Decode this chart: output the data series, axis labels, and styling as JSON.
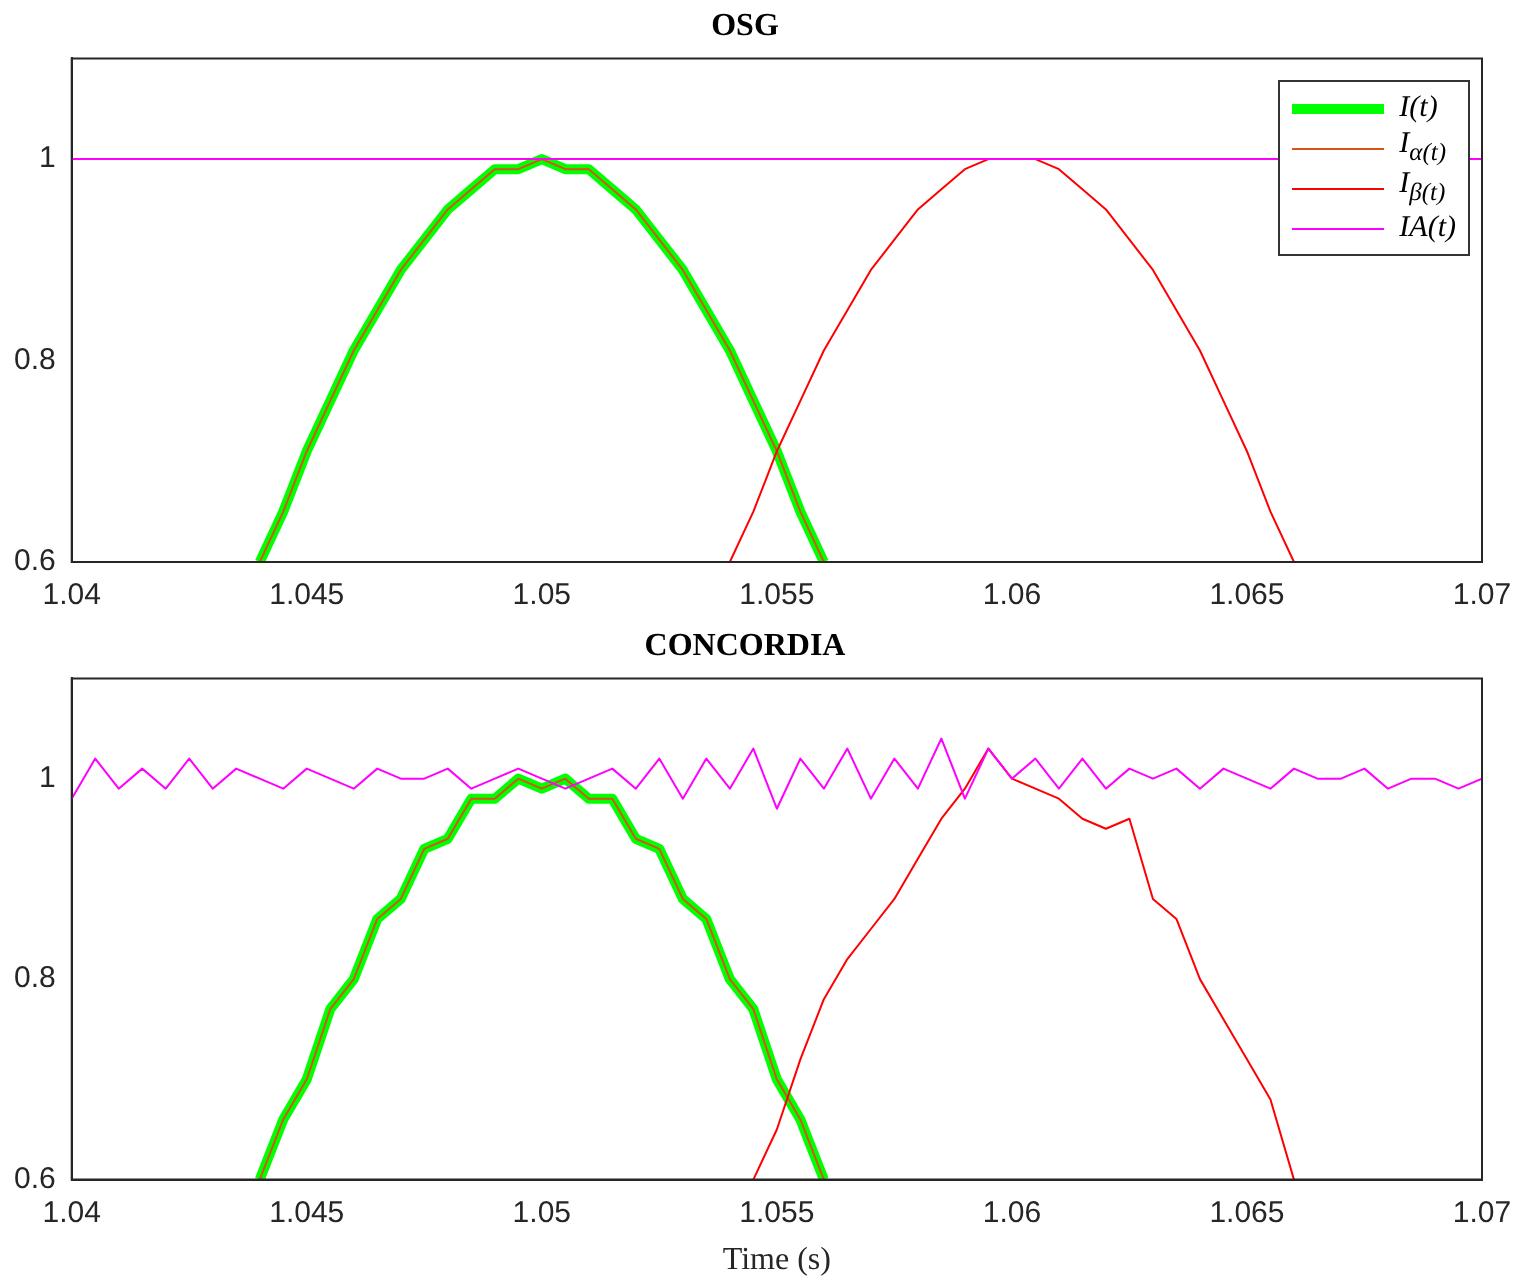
{
  "chart_data": [
    {
      "type": "line",
      "title": "OSG",
      "xlim": [
        1.04,
        1.07
      ],
      "xticks": [
        1.04,
        1.045,
        1.05,
        1.055,
        1.06,
        1.065,
        1.07
      ],
      "ylim": [
        0.6,
        1.1
      ],
      "yticks": [
        0.6,
        0.8,
        1
      ],
      "legend": "top right",
      "series": [
        {
          "name": "I(t)",
          "color": "#00ff00",
          "x": [
            1.044,
            1.0445,
            1.045,
            1.0455,
            1.046,
            1.0465,
            1.047,
            1.0475,
            1.048,
            1.0485,
            1.049,
            1.0495,
            1.05,
            1.0505,
            1.051,
            1.0515,
            1.052,
            1.0525,
            1.053,
            1.0535,
            1.054,
            1.0545,
            1.055,
            1.0555,
            1.056
          ],
          "values": [
            0.6,
            0.65,
            0.71,
            0.76,
            0.81,
            0.85,
            0.89,
            0.92,
            0.95,
            0.97,
            0.99,
            0.99,
            1.0,
            0.99,
            0.99,
            0.97,
            0.95,
            0.92,
            0.89,
            0.85,
            0.81,
            0.76,
            0.71,
            0.65,
            0.6
          ]
        },
        {
          "name": "I$_{α(t)}$",
          "color": "#d95319",
          "x": [
            1.044,
            1.0445,
            1.045,
            1.0455,
            1.046,
            1.0465,
            1.047,
            1.0475,
            1.048,
            1.0485,
            1.049,
            1.0495,
            1.05,
            1.0505,
            1.051,
            1.0515,
            1.052,
            1.0525,
            1.053,
            1.0535,
            1.054,
            1.0545,
            1.055,
            1.0555,
            1.056
          ],
          "values": [
            0.6,
            0.65,
            0.71,
            0.76,
            0.81,
            0.85,
            0.89,
            0.92,
            0.95,
            0.97,
            0.99,
            0.99,
            1.0,
            0.99,
            0.99,
            0.97,
            0.95,
            0.92,
            0.89,
            0.85,
            0.81,
            0.76,
            0.71,
            0.65,
            0.6
          ]
        },
        {
          "name": "I$_{β(t)}$",
          "color": "#ff0000",
          "x": [
            1.054,
            1.0545,
            1.055,
            1.0555,
            1.056,
            1.0565,
            1.057,
            1.0575,
            1.058,
            1.0585,
            1.059,
            1.0595,
            1.06,
            1.0605,
            1.061,
            1.0615,
            1.062,
            1.0625,
            1.063,
            1.0635,
            1.064,
            1.0645,
            1.065,
            1.0655,
            1.066
          ],
          "values": [
            0.6,
            0.65,
            0.71,
            0.76,
            0.81,
            0.85,
            0.89,
            0.92,
            0.95,
            0.97,
            0.99,
            1.0,
            1.0,
            1.0,
            0.99,
            0.97,
            0.95,
            0.92,
            0.89,
            0.85,
            0.81,
            0.76,
            0.71,
            0.65,
            0.6
          ]
        },
        {
          "name": "IA(t)",
          "color": "#ff00ff",
          "x": [
            1.04,
            1.05,
            1.06,
            1.07
          ],
          "values": [
            1.0,
            1.0,
            1.0,
            1.0
          ]
        }
      ]
    },
    {
      "type": "line",
      "title": "CONCORDIA",
      "xlabel": "Time (s)",
      "xlim": [
        1.04,
        1.07
      ],
      "xticks": [
        1.04,
        1.045,
        1.05,
        1.055,
        1.06,
        1.065,
        1.07
      ],
      "ylim": [
        0.6,
        1.1
      ],
      "yticks": [
        0.6,
        0.8,
        1
      ],
      "series": [
        {
          "color": "#00ff00",
          "x": [
            1.044,
            1.0445,
            1.045,
            1.0455,
            1.046,
            1.0465,
            1.047,
            1.0475,
            1.048,
            1.0485,
            1.049,
            1.0495,
            1.05,
            1.0505,
            1.051,
            1.0515,
            1.052,
            1.0525,
            1.053,
            1.0535,
            1.054,
            1.0545,
            1.055,
            1.0555,
            1.056
          ],
          "values": [
            0.6,
            0.66,
            0.7,
            0.77,
            0.8,
            0.86,
            0.88,
            0.93,
            0.94,
            0.98,
            0.98,
            1.0,
            0.99,
            1.0,
            0.98,
            0.98,
            0.94,
            0.93,
            0.88,
            0.86,
            0.8,
            0.77,
            0.7,
            0.66,
            0.6
          ]
        },
        {
          "color": "#d95319",
          "x": [
            1.044,
            1.0445,
            1.045,
            1.0455,
            1.046,
            1.0465,
            1.047,
            1.0475,
            1.048,
            1.0485,
            1.049,
            1.0495,
            1.05,
            1.0505,
            1.051,
            1.0515,
            1.052,
            1.0525,
            1.053,
            1.0535,
            1.054,
            1.0545,
            1.055,
            1.0555,
            1.056
          ],
          "values": [
            0.6,
            0.66,
            0.7,
            0.77,
            0.8,
            0.86,
            0.88,
            0.93,
            0.94,
            0.98,
            0.98,
            1.0,
            0.99,
            1.0,
            0.98,
            0.98,
            0.94,
            0.93,
            0.88,
            0.86,
            0.8,
            0.77,
            0.7,
            0.66,
            0.6
          ]
        },
        {
          "color": "#ff0000",
          "x": [
            1.0545,
            1.055,
            1.0555,
            1.056,
            1.0565,
            1.057,
            1.0575,
            1.058,
            1.0585,
            1.059,
            1.0595,
            1.06,
            1.0605,
            1.061,
            1.0615,
            1.062,
            1.0625,
            1.063,
            1.0635,
            1.064,
            1.0645,
            1.065,
            1.0655,
            1.066
          ],
          "values": [
            0.6,
            0.65,
            0.72,
            0.78,
            0.82,
            0.85,
            0.88,
            0.92,
            0.96,
            0.99,
            1.03,
            1.0,
            0.99,
            0.98,
            0.96,
            0.95,
            0.96,
            0.88,
            0.86,
            0.8,
            0.76,
            0.72,
            0.68,
            0.6
          ]
        },
        {
          "color": "#ff00ff",
          "x": [
            1.04,
            1.0405,
            1.041,
            1.0415,
            1.042,
            1.0425,
            1.043,
            1.0435,
            1.044,
            1.0445,
            1.045,
            1.0455,
            1.046,
            1.0465,
            1.047,
            1.0475,
            1.048,
            1.0485,
            1.049,
            1.0495,
            1.05,
            1.0505,
            1.051,
            1.0515,
            1.052,
            1.0525,
            1.053,
            1.0535,
            1.054,
            1.0545,
            1.055,
            1.0555,
            1.056,
            1.0565,
            1.057,
            1.0575,
            1.058,
            1.0585,
            1.059,
            1.0595,
            1.06,
            1.0605,
            1.061,
            1.0615,
            1.062,
            1.0625,
            1.063,
            1.0635,
            1.064,
            1.0645,
            1.065,
            1.0655,
            1.066,
            1.0665,
            1.067,
            1.0675,
            1.068,
            1.0685,
            1.069,
            1.0695,
            1.07
          ],
          "values": [
            0.98,
            1.02,
            0.99,
            1.01,
            0.99,
            1.02,
            0.99,
            1.01,
            1.0,
            0.99,
            1.01,
            1.0,
            0.99,
            1.01,
            1.0,
            1.0,
            1.01,
            0.99,
            1.0,
            1.01,
            1.0,
            0.99,
            1.0,
            1.01,
            0.99,
            1.02,
            0.98,
            1.02,
            0.99,
            1.03,
            0.97,
            1.02,
            0.99,
            1.03,
            0.98,
            1.02,
            0.99,
            1.04,
            0.98,
            1.03,
            1.0,
            1.02,
            0.99,
            1.02,
            0.99,
            1.01,
            1.0,
            1.01,
            0.99,
            1.01,
            1.0,
            0.99,
            1.01,
            1.0,
            1.0,
            1.01,
            0.99,
            1.0,
            1.0,
            0.99,
            1.0
          ]
        }
      ]
    }
  ]
}
